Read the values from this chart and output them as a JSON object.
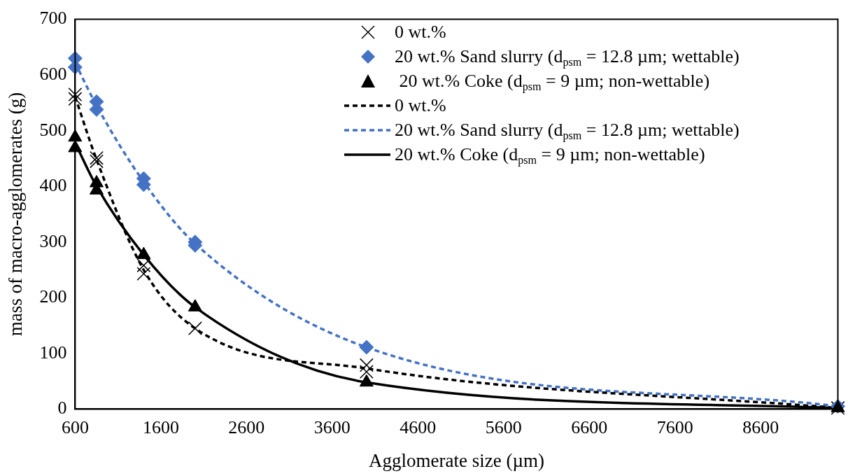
{
  "chart_data": {
    "type": "scatter",
    "xlabel": "Agglomerate size (µm)",
    "ylabel": "mass of macro-agglomerates (g)",
    "xlim": [
      600,
      9500
    ],
    "xticks": [
      600,
      1600,
      2600,
      3600,
      4600,
      5600,
      6600,
      7600,
      8600
    ],
    "ylim": [
      0,
      700
    ],
    "yticks": [
      0,
      100,
      200,
      300,
      400,
      500,
      600,
      700
    ],
    "grid": false,
    "legend": "top right",
    "series": [
      {
        "name": "0 wt.%",
        "type": "scatter",
        "marker": "cross",
        "color": "#000000",
        "x": [
          600,
          600,
          850,
          850,
          1400,
          1400,
          2000,
          4000,
          4000,
          9500
        ],
        "values": [
          565,
          557,
          451,
          445,
          258,
          243,
          145,
          79,
          67,
          2
        ]
      },
      {
        "name": "20 wt.% Sand slurry (d$_{psm}$ = 12.8 µm; wettable)",
        "type": "scatter",
        "marker": "diamond",
        "color": "#4472c4",
        "x": [
          600,
          600,
          850,
          850,
          1400,
          1400,
          2000,
          2000,
          4000,
          9500
        ],
        "values": [
          630,
          614,
          552,
          538,
          414,
          403,
          300,
          294,
          111,
          5
        ]
      },
      {
        "name": " 20 wt.% Coke (d$_{psm}$ = 9 µm; non-wettable)",
        "type": "scatter",
        "marker": "triangle",
        "color": "#000000",
        "x": [
          600,
          600,
          850,
          850,
          1400,
          2000,
          4000,
          9500
        ],
        "values": [
          488,
          469,
          406,
          393,
          277,
          183,
          48,
          2
        ]
      },
      {
        "name": "0 wt.%",
        "type": "line",
        "marker": "none",
        "line_style": "dashed",
        "color": "#000000",
        "x": [
          600,
          850,
          1400,
          2000,
          4000,
          9500
        ],
        "values": [
          561,
          448,
          250,
          145,
          73,
          2
        ]
      },
      {
        "name": "20 wt.% Sand slurry (d$_{psm}$ = 12.8 µm; wettable)",
        "type": "line",
        "marker": "none",
        "line_style": "dashed",
        "color": "#4472c4",
        "x": [
          600,
          850,
          1400,
          2000,
          4000,
          9500
        ],
        "values": [
          622,
          545,
          408,
          297,
          111,
          5
        ]
      },
      {
        "name": "20 wt.% Coke (d$_{psm}$ = 9 µm; non-wettable)",
        "type": "line",
        "marker": "none",
        "line_style": "solid",
        "color": "#000000",
        "x": [
          600,
          850,
          1400,
          2000,
          4000,
          9500
        ],
        "values": [
          478,
          400,
          277,
          183,
          48,
          2
        ]
      }
    ]
  }
}
